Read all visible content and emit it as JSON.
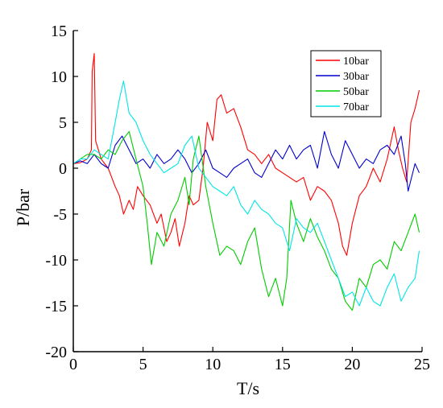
{
  "chart_data": {
    "type": "line",
    "xlabel": "T/s",
    "ylabel": "P/bar",
    "xlim": [
      0,
      25
    ],
    "ylim": [
      -20,
      15
    ],
    "xticks": [
      "0",
      "5",
      "10",
      "15",
      "20",
      "25"
    ],
    "yticks": [
      "-20",
      "-15",
      "-10",
      "-5",
      "0",
      "5",
      "10",
      "15"
    ],
    "legend_position": "top-right",
    "grid": false,
    "series": [
      {
        "name": "10bar",
        "color": "#ff0000",
        "x": [
          0,
          0.5,
          1.0,
          1.3,
          1.35,
          1.5,
          1.6,
          2.0,
          2.5,
          3.0,
          3.3,
          3.6,
          4.0,
          4.3,
          4.6,
          5.0,
          5.5,
          6.0,
          6.3,
          6.7,
          7.0,
          7.3,
          7.6,
          8.0,
          8.3,
          8.6,
          9.0,
          9.3,
          9.6,
          10.0,
          10.3,
          10.6,
          11.0,
          11.5,
          12.0,
          12.5,
          13.0,
          13.5,
          14.0,
          14.5,
          15.0,
          15.5,
          16.0,
          16.5,
          17.0,
          17.5,
          18.0,
          18.5,
          19.0,
          19.3,
          19.6,
          20.0,
          20.5,
          21.0,
          21.5,
          22.0,
          22.5,
          23.0,
          23.3,
          23.6,
          23.9,
          24.2,
          24.5,
          24.8
        ],
        "y": [
          0.5,
          0.6,
          1.0,
          2.0,
          10.5,
          12.5,
          3.0,
          1.0,
          0.0,
          -2.0,
          -3.0,
          -5.0,
          -3.5,
          -4.5,
          -2.0,
          -3.0,
          -4.0,
          -6.0,
          -5.0,
          -8.0,
          -7.0,
          -5.5,
          -8.5,
          -6.0,
          -3.0,
          -4.0,
          -3.5,
          0.0,
          5.0,
          3.0,
          7.5,
          8.0,
          6.0,
          6.5,
          4.5,
          2.0,
          1.5,
          0.5,
          1.5,
          0.0,
          -0.5,
          -1.0,
          -1.5,
          -1.0,
          -3.5,
          -2.0,
          -2.5,
          -3.5,
          -6.0,
          -8.5,
          -9.5,
          -6.0,
          -3.0,
          -2.0,
          0.0,
          -1.5,
          1.0,
          4.5,
          2.0,
          0.0,
          -1.5,
          5.0,
          6.5,
          8.5
        ]
      },
      {
        "name": "30bar",
        "color": "#0000cc",
        "x": [
          0,
          0.5,
          1.0,
          1.5,
          2.0,
          2.5,
          3.0,
          3.5,
          4.0,
          4.5,
          5.0,
          5.5,
          6.0,
          6.5,
          7.0,
          7.5,
          8.0,
          8.5,
          9.0,
          9.5,
          10.0,
          10.5,
          11.0,
          11.5,
          12.0,
          12.5,
          13.0,
          13.5,
          14.0,
          14.5,
          15.0,
          15.5,
          16.0,
          16.5,
          17.0,
          17.5,
          18.0,
          18.5,
          19.0,
          19.5,
          20.0,
          20.5,
          21.0,
          21.5,
          22.0,
          22.5,
          23.0,
          23.5,
          23.8,
          24.0,
          24.5,
          24.8
        ],
        "y": [
          0.5,
          0.8,
          0.5,
          1.5,
          0.5,
          0.0,
          2.5,
          3.5,
          2.0,
          0.5,
          1.0,
          0.0,
          1.5,
          0.5,
          1.0,
          2.0,
          1.0,
          -0.5,
          0.5,
          2.0,
          0.0,
          -0.5,
          -1.0,
          0.0,
          0.5,
          1.0,
          -0.5,
          -1.0,
          0.5,
          2.0,
          1.0,
          2.5,
          1.0,
          2.0,
          2.5,
          0.0,
          4.0,
          1.5,
          0.0,
          3.0,
          1.5,
          0.0,
          1.0,
          0.5,
          2.0,
          2.5,
          1.5,
          3.5,
          0.5,
          -2.5,
          0.5,
          -0.5
        ]
      },
      {
        "name": "50bar",
        "color": "#00cc00",
        "x": [
          0,
          0.5,
          1.0,
          1.5,
          2.0,
          2.5,
          3.0,
          3.5,
          4.0,
          4.5,
          5.0,
          5.3,
          5.6,
          6.0,
          6.5,
          7.0,
          7.5,
          8.0,
          8.3,
          8.6,
          9.0,
          9.5,
          10.0,
          10.5,
          11.0,
          11.5,
          12.0,
          12.5,
          13.0,
          13.5,
          14.0,
          14.5,
          15.0,
          15.3,
          15.6,
          16.0,
          16.5,
          17.0,
          17.5,
          18.0,
          18.5,
          19.0,
          19.5,
          20.0,
          20.5,
          21.0,
          21.5,
          22.0,
          22.5,
          23.0,
          23.5,
          24.0,
          24.5,
          24.8
        ],
        "y": [
          0.5,
          1.0,
          1.5,
          1.5,
          1.0,
          2.0,
          1.5,
          3.0,
          4.0,
          1.0,
          -2.0,
          -6.0,
          -10.5,
          -7.0,
          -8.5,
          -5.0,
          -3.5,
          -1.0,
          -4.0,
          1.0,
          3.5,
          -2.0,
          -6.0,
          -9.5,
          -8.5,
          -9.0,
          -10.5,
          -8.0,
          -6.5,
          -11.0,
          -14.0,
          -12.0,
          -15.0,
          -12.0,
          -3.5,
          -6.0,
          -8.0,
          -5.5,
          -7.5,
          -9.0,
          -11.0,
          -12.0,
          -14.5,
          -15.5,
          -12.0,
          -13.0,
          -10.5,
          -10.0,
          -11.0,
          -8.0,
          -9.0,
          -7.0,
          -5.0,
          -7.0
        ]
      },
      {
        "name": "70bar",
        "color": "#00e5e5",
        "x": [
          0,
          0.5,
          1.0,
          1.5,
          2.0,
          2.5,
          3.0,
          3.3,
          3.6,
          4.0,
          4.5,
          5.0,
          5.5,
          6.0,
          6.5,
          7.0,
          7.5,
          8.0,
          8.5,
          9.0,
          9.5,
          10.0,
          10.5,
          11.0,
          11.5,
          12.0,
          12.5,
          13.0,
          13.5,
          14.0,
          14.5,
          15.0,
          15.5,
          16.0,
          16.5,
          17.0,
          17.5,
          18.0,
          18.5,
          19.0,
          19.5,
          20.0,
          20.5,
          21.0,
          21.5,
          22.0,
          22.5,
          23.0,
          23.5,
          24.0,
          24.5,
          24.8
        ],
        "y": [
          0.5,
          1.0,
          1.0,
          2.0,
          1.5,
          1.0,
          5.0,
          7.5,
          9.5,
          6.0,
          5.0,
          3.0,
          1.5,
          0.5,
          -0.5,
          0.0,
          0.5,
          2.5,
          3.5,
          0.0,
          -1.0,
          -2.0,
          -2.5,
          -3.0,
          -2.0,
          -4.0,
          -5.0,
          -3.5,
          -4.5,
          -5.0,
          -6.0,
          -6.5,
          -9.0,
          -5.5,
          -6.5,
          -7.0,
          -6.0,
          -8.0,
          -10.0,
          -12.0,
          -14.0,
          -13.5,
          -15.0,
          -13.0,
          -14.5,
          -15.0,
          -13.0,
          -11.5,
          -14.5,
          -13.0,
          -12.0,
          -9.0
        ]
      }
    ]
  }
}
